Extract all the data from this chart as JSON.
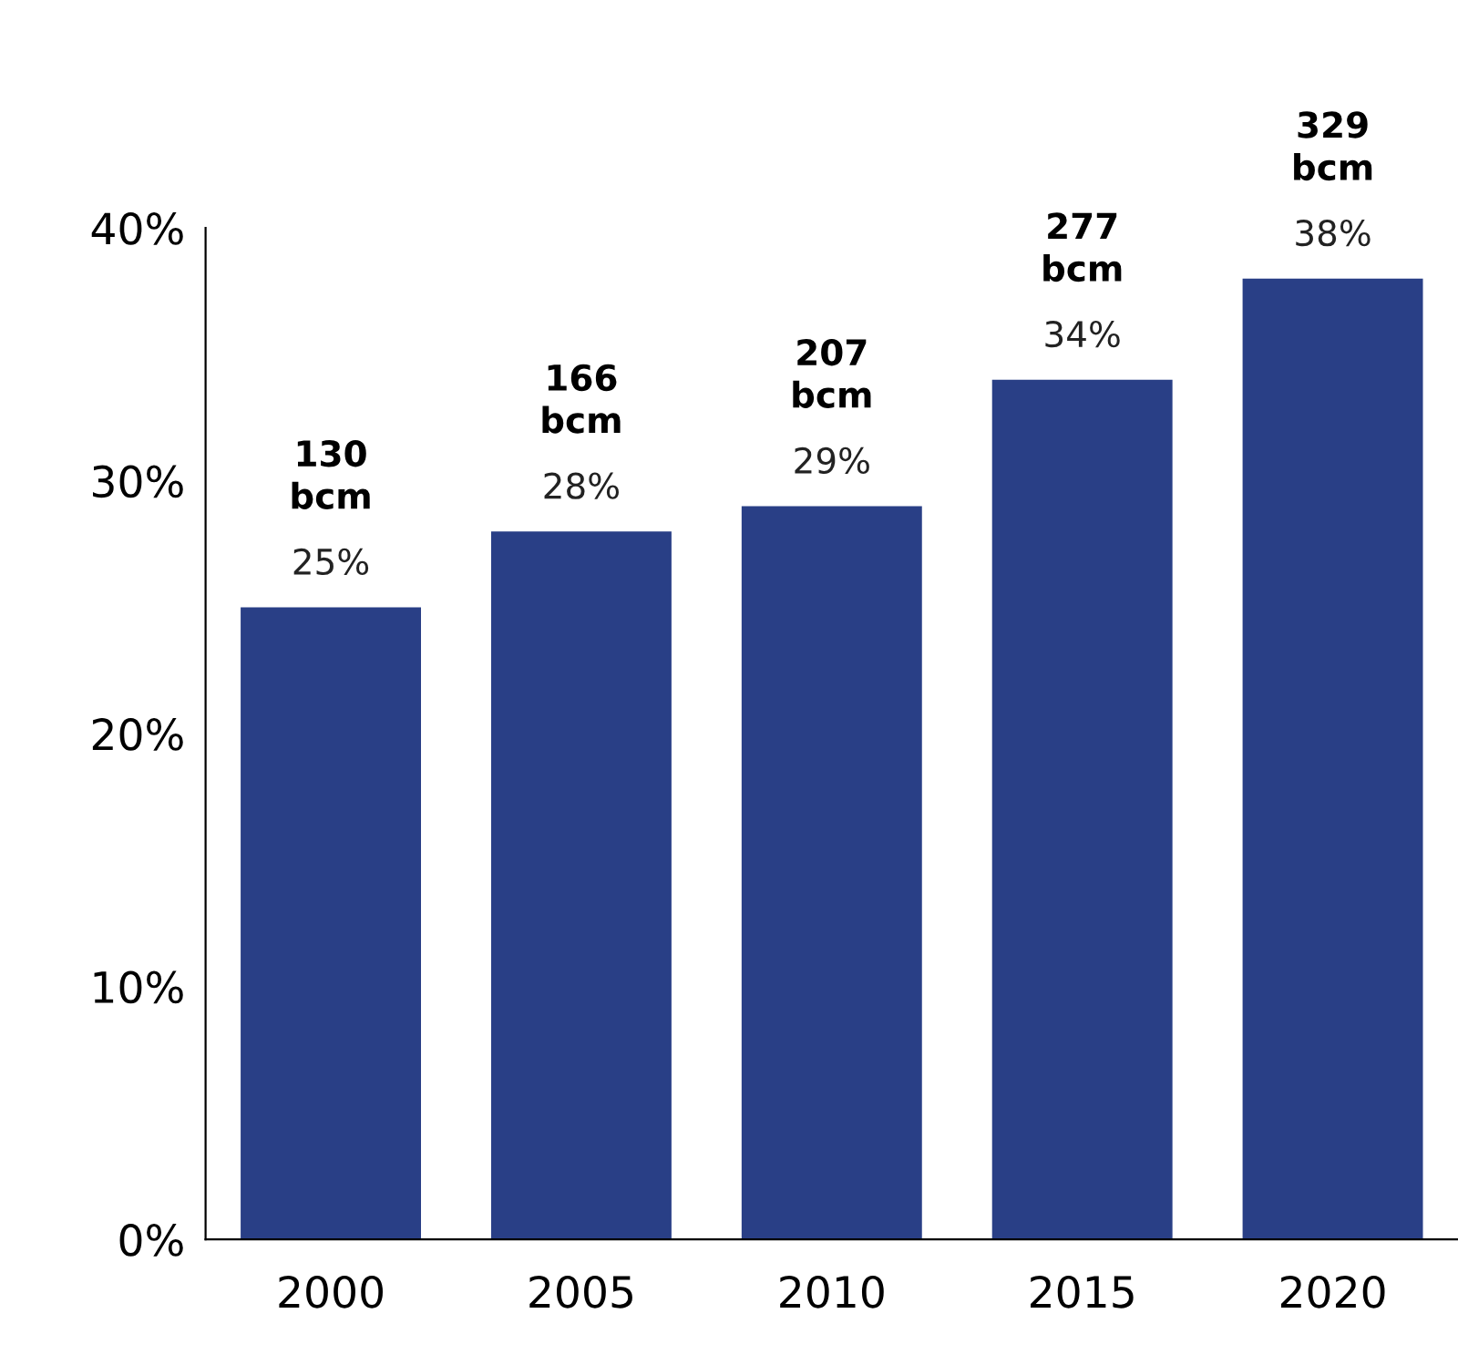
{
  "chart_data": {
    "type": "bar",
    "categories": [
      "2000",
      "2005",
      "2010",
      "2015",
      "2020"
    ],
    "values": [
      25,
      28,
      29,
      34,
      38
    ],
    "color": "#293f86",
    "value_labels": [
      "25%",
      "28%",
      "29%",
      "34%",
      "38%"
    ],
    "ylim": [
      0,
      40
    ],
    "yticks": [
      {
        "value": 0,
        "label": "0%"
      },
      {
        "value": 10,
        "label": "10%"
      },
      {
        "value": 20,
        "label": "20%"
      },
      {
        "value": 30,
        "label": "30%"
      },
      {
        "value": 40,
        "label": "40%"
      }
    ],
    "grid": false,
    "legend": false,
    "annotations": [
      {
        "text": "130\nbcm",
        "x": "2000",
        "y": 25
      },
      {
        "text": "166\nbcm",
        "x": "2005",
        "y": 28
      },
      {
        "text": "207\nbcm",
        "x": "2010",
        "y": 29
      },
      {
        "text": "277\nbcm",
        "x": "2015",
        "y": 34
      },
      {
        "text": "329\nbcm",
        "x": "2020",
        "y": 38
      }
    ]
  }
}
